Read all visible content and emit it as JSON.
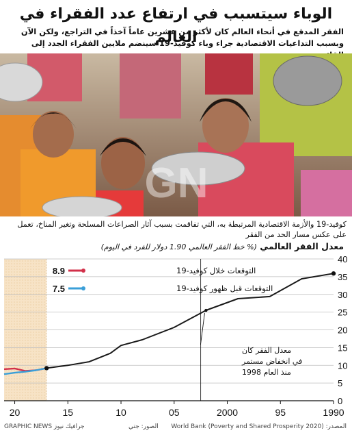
{
  "header": {
    "title": "الوباء سيتسبب في ارتفاع عدد الفقراء في العالم",
    "subtitle": "الفقر المدقع في أنحاء العالم كان لأكثر من عشرين عاماً آخذاً في التراجع، ولكن الآن وبسبب التداعيات الاقتصادية جراء وباء كوفيد-19 سينضم ملايين الفقراء الجدد إلى القائمة"
  },
  "photo": {
    "caption": "كوفيد-19 والأزمة الاقتصادية المرتبطة به، التي تفاقمت بسبب آثار الصراعات المسلحة وتغير المناخ، تعمل على عكس مسار الحد من الفقر",
    "watermark": "GRAPHIC NEWS"
  },
  "chart_data": {
    "type": "line",
    "title": "معدل الفقر العالمي",
    "subtitle": "(% خط الفقر العالمي 1.90 دولار للفرد في اليوم)",
    "x_tick_labels": [
      "1990",
      "95",
      "2000",
      "05",
      "10",
      "15",
      "20"
    ],
    "xlim": [
      1990,
      2021
    ],
    "ylim": [
      0,
      40
    ],
    "y_ticks": [
      0,
      5,
      10,
      15,
      20,
      25,
      30,
      35,
      40
    ],
    "grid": "horizontal",
    "projection_shading": [
      2017,
      2021
    ],
    "series": [
      {
        "name": "historical",
        "color": "#1a1a1a",
        "x": [
          1990,
          1993,
          1996,
          1999,
          2002,
          2005,
          2008,
          2010,
          2011,
          2012,
          2013,
          2015,
          2017
        ],
        "y": [
          35.9,
          34.4,
          29.4,
          28.8,
          25.5,
          20.7,
          17.2,
          15.6,
          13.4,
          12.2,
          11.0,
          10.0,
          9.2
        ]
      },
      {
        "name": "التوقعات خلال كوفيد-19",
        "color": "#d2304a",
        "x": [
          2017,
          2018,
          2019,
          2020,
          2021
        ],
        "y": [
          9.2,
          8.6,
          8.4,
          9.1,
          8.9
        ],
        "value_label": "8.9"
      },
      {
        "name": "التوقعات قبل ظهور كوفيد-19",
        "color": "#3a9fd8",
        "x": [
          2017,
          2018,
          2019,
          2020,
          2021
        ],
        "y": [
          9.2,
          8.6,
          8.2,
          7.9,
          7.5
        ],
        "value_label": "7.5"
      }
    ],
    "annotation": {
      "text_lines": [
        "معدل الفقر كان",
        "في انخفاض مستمر",
        "منذ العام 1998"
      ],
      "point_x": 2002,
      "point_y": 25.5
    }
  },
  "footer": {
    "source": "المصدر: World Bank (Poverty and Shared Prosperity 2020)",
    "photo_credit": "الصور: جتي",
    "brand": "GRAPHIC NEWS جرافيك نيوز"
  },
  "colors": {
    "accent_red": "#d2304a",
    "accent_blue": "#3a9fd8",
    "shade": "#f7e3c6",
    "axis": "#111111"
  }
}
